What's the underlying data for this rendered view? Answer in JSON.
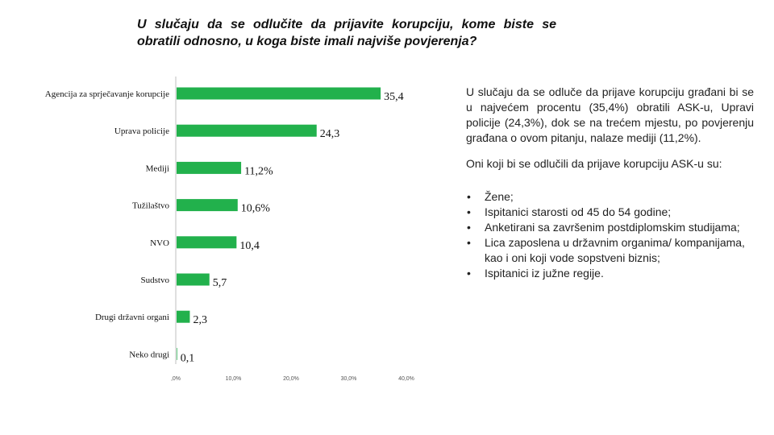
{
  "title": "U slučaju da se odlučite da prijavite korupciju, kome biste se obratili odnosno, u koga biste imali najviše povjerenja?",
  "colors": {
    "bar": "#22b14c",
    "axis": "#bfbfbf"
  },
  "chart_data": {
    "type": "bar",
    "orientation": "horizontal",
    "categories": [
      "Agencija za sprječavanje korupcije",
      "Uprava policije",
      "Mediji",
      "Tužilaštvo",
      "NVO",
      "Sudstvo",
      "Drugi državni organi",
      "Neko drugi"
    ],
    "values": [
      35.4,
      24.3,
      11.2,
      10.6,
      10.4,
      5.7,
      2.3,
      0.1
    ],
    "data_labels": [
      "35,4",
      "24,3",
      "11,2%",
      "10,6%",
      "10,4",
      "5,7",
      "2,3",
      "0,1"
    ],
    "xticks": [
      0,
      10,
      20,
      30,
      40
    ],
    "xtick_labels": [
      ",0%",
      "10,0%",
      "20,0%",
      "30,0%",
      "40,0%"
    ],
    "xlim": [
      0,
      40
    ],
    "grid": false,
    "legend": "none"
  },
  "side": {
    "para1": "U slučaju da se odluče da prijave korupciju građani bi se u najvećem procentu (35,4%) obratili ASK-u, Upravi policije (24,3%), dok se na trećem mjestu, po povjerenju građana o ovom pitanju, nalaze mediji (11,2%).",
    "para2": "Oni koji bi se odlučili da prijave korupciju ASK-u su:",
    "bullets": [
      "Žene;",
      "Ispitanici starosti od 45 do 54 godine;",
      "Anketirani sa završenim postdiplomskim studijama;",
      "Lica zaposlena u državnim organima/ kompanijama, kao i oni koji vode sopstveni biznis;",
      "Ispitanici iz južne regije."
    ]
  }
}
